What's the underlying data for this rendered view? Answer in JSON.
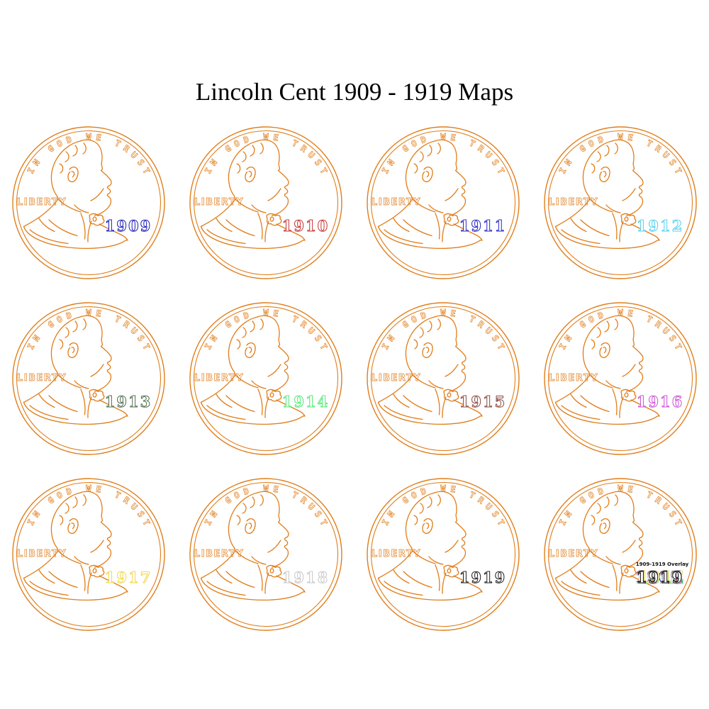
{
  "title": "Lincoln Cent 1909 - 1919 Maps",
  "coin_motto": "IN GOD WE TRUST",
  "coin_liberty": "LIBERTY",
  "colors": {
    "line": "#e07d1a",
    "title": "#000000"
  },
  "coins": [
    {
      "year": "1909",
      "color": "#1818b8"
    },
    {
      "year": "1910",
      "color": "#c53333"
    },
    {
      "year": "1911",
      "color": "#2828c8"
    },
    {
      "year": "1912",
      "color": "#55d0ee"
    },
    {
      "year": "1913",
      "color": "#4f6f4f"
    },
    {
      "year": "1914",
      "color": "#55e878"
    },
    {
      "year": "1915",
      "color": "#8a4a42"
    },
    {
      "year": "1916",
      "color": "#cc50d8"
    },
    {
      "year": "1917",
      "color": "#f2d847"
    },
    {
      "year": "1918",
      "color": "#c8c8c8"
    },
    {
      "year": "1919",
      "color": "#1c1c1c"
    },
    {
      "year": "1919",
      "color": "#1c1c1c",
      "overlay_label": "1909-1919 Overlay",
      "overlay": true
    }
  ]
}
